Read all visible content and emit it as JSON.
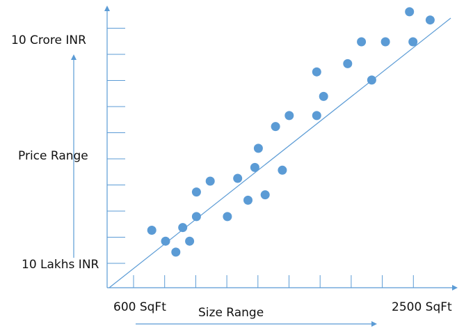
{
  "chart_data": {
    "type": "scatter",
    "title": "",
    "xlabel": "Size Range",
    "ylabel": "Price Range",
    "x_min_label": "600 SqFt",
    "x_max_label": "2500 SqFt",
    "y_min_label": "10 Lakhs INR",
    "y_max_label": "10 Crore INR",
    "x_ticks": 10,
    "y_ticks": 10,
    "grid": false,
    "legend": "none",
    "trend_line": true,
    "marker_color": "#5B9BD5",
    "axis_color": "#5B9BD5",
    "points": [
      {
        "x": 0.13,
        "y": 0.19
      },
      {
        "x": 0.17,
        "y": 0.15
      },
      {
        "x": 0.2,
        "y": 0.11
      },
      {
        "x": 0.22,
        "y": 0.2
      },
      {
        "x": 0.24,
        "y": 0.15
      },
      {
        "x": 0.26,
        "y": 0.24
      },
      {
        "x": 0.26,
        "y": 0.33
      },
      {
        "x": 0.3,
        "y": 0.37
      },
      {
        "x": 0.35,
        "y": 0.24
      },
      {
        "x": 0.38,
        "y": 0.38
      },
      {
        "x": 0.41,
        "y": 0.3
      },
      {
        "x": 0.43,
        "y": 0.42
      },
      {
        "x": 0.44,
        "y": 0.49
      },
      {
        "x": 0.46,
        "y": 0.32
      },
      {
        "x": 0.49,
        "y": 0.57
      },
      {
        "x": 0.51,
        "y": 0.41
      },
      {
        "x": 0.53,
        "y": 0.61
      },
      {
        "x": 0.61,
        "y": 0.61
      },
      {
        "x": 0.61,
        "y": 0.77
      },
      {
        "x": 0.63,
        "y": 0.68
      },
      {
        "x": 0.7,
        "y": 0.8
      },
      {
        "x": 0.74,
        "y": 0.88
      },
      {
        "x": 0.77,
        "y": 0.74
      },
      {
        "x": 0.81,
        "y": 0.88
      },
      {
        "x": 0.88,
        "y": 0.99
      },
      {
        "x": 0.89,
        "y": 0.88
      },
      {
        "x": 0.94,
        "y": 0.96
      }
    ]
  }
}
